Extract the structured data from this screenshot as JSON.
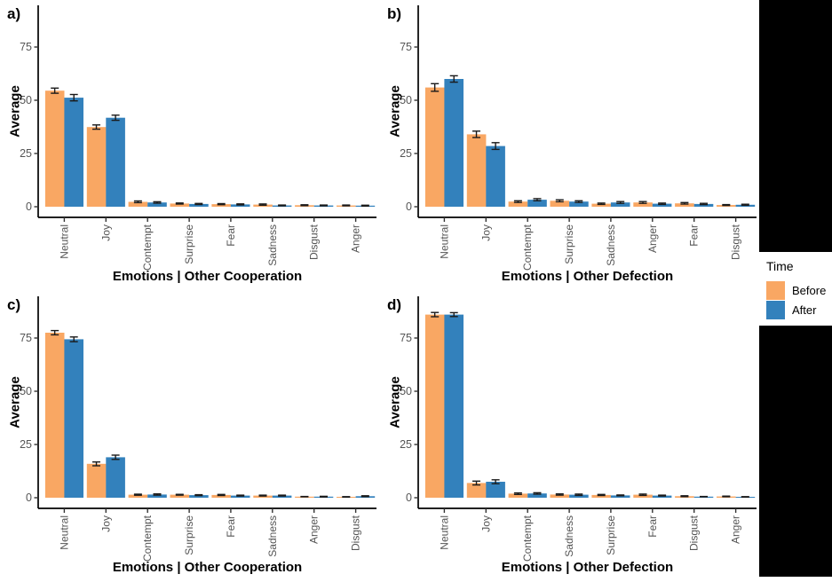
{
  "legend": {
    "title": "Time",
    "items": [
      {
        "label": "Before",
        "color": "#F9A763"
      },
      {
        "label": "After",
        "color": "#3381BC"
      }
    ]
  },
  "colors": {
    "before": "#F9A763",
    "after": "#3381BC",
    "axis_line": "#000000",
    "tick_text": "#555555",
    "error_bar": "#1A1A1A",
    "mask": "#000000"
  },
  "chart_data": [
    {
      "type": "bar",
      "panel_label": "a)",
      "xlabel": "Emotions | Other Cooperation",
      "ylabel": "Average",
      "yticks": [
        0,
        25,
        50,
        75
      ],
      "ylim": [
        0,
        93
      ],
      "legend_position": "right-outside",
      "grid": false,
      "categories": [
        "Neutral",
        "Joy",
        "Contempt",
        "Surprise",
        "Fear",
        "Sadness",
        "Disgust",
        "Anger"
      ],
      "series": [
        {
          "name": "Before",
          "values": [
            54.5,
            37.4,
            2.3,
            1.5,
            1.2,
            1.0,
            0.7,
            0.6
          ],
          "errors": [
            1.2,
            1.0,
            0.4,
            0.25,
            0.25,
            0.3,
            0.2,
            0.2
          ]
        },
        {
          "name": "After",
          "values": [
            51.2,
            41.8,
            2.0,
            1.3,
            1.1,
            0.6,
            0.6,
            0.5
          ],
          "errors": [
            1.5,
            1.2,
            0.35,
            0.25,
            0.25,
            0.2,
            0.2,
            0.2
          ]
        }
      ]
    },
    {
      "type": "bar",
      "panel_label": "b)",
      "xlabel": "Emotions | Other Defection",
      "ylabel": "Average",
      "yticks": [
        0,
        25,
        50,
        75
      ],
      "ylim": [
        0,
        93
      ],
      "legend_position": "right-outside",
      "grid": false,
      "categories": [
        "Neutral",
        "Joy",
        "Contempt",
        "Surprise",
        "Sadness",
        "Anger",
        "Fear",
        "Disgust"
      ],
      "series": [
        {
          "name": "Before",
          "values": [
            56.0,
            34.0,
            2.4,
            2.8,
            1.4,
            2.0,
            1.6,
            0.8
          ],
          "errors": [
            1.8,
            1.5,
            0.4,
            0.45,
            0.3,
            0.4,
            0.35,
            0.2
          ]
        },
        {
          "name": "After",
          "values": [
            60.0,
            28.5,
            3.3,
            2.4,
            2.0,
            1.4,
            1.3,
            0.9
          ],
          "errors": [
            1.5,
            1.6,
            0.5,
            0.4,
            0.4,
            0.3,
            0.3,
            0.25
          ]
        }
      ]
    },
    {
      "type": "bar",
      "panel_label": "c)",
      "xlabel": "Emotions | Other Cooperation",
      "ylabel": "Average",
      "yticks": [
        0,
        25,
        50,
        75
      ],
      "ylim": [
        0,
        93
      ],
      "legend_position": "right-outside",
      "grid": false,
      "categories": [
        "Neutral",
        "Joy",
        "Contempt",
        "Surprise",
        "Fear",
        "Sadness",
        "Anger",
        "Disgust"
      ],
      "series": [
        {
          "name": "Before",
          "values": [
            77.5,
            15.9,
            1.4,
            1.4,
            1.3,
            1.0,
            0.5,
            0.4
          ],
          "errors": [
            1.0,
            0.9,
            0.25,
            0.2,
            0.25,
            0.2,
            0.1,
            0.1
          ]
        },
        {
          "name": "After",
          "values": [
            74.4,
            19.0,
            1.5,
            1.2,
            1.0,
            1.0,
            0.5,
            0.7
          ],
          "errors": [
            1.1,
            1.0,
            0.3,
            0.2,
            0.2,
            0.2,
            0.15,
            0.2
          ]
        }
      ]
    },
    {
      "type": "bar",
      "panel_label": "d)",
      "xlabel": "Emotions | Other Defection",
      "ylabel": "Average",
      "yticks": [
        0,
        25,
        50,
        75
      ],
      "ylim": [
        0,
        93
      ],
      "legend_position": "right-outside",
      "grid": false,
      "categories": [
        "Neutral",
        "Joy",
        "Contempt",
        "Sadness",
        "Surprise",
        "Fear",
        "Disgust",
        "Anger"
      ],
      "series": [
        {
          "name": "Before",
          "values": [
            86.0,
            6.9,
            1.9,
            1.5,
            1.3,
            1.4,
            0.7,
            0.6
          ],
          "errors": [
            1.0,
            0.9,
            0.35,
            0.3,
            0.25,
            0.3,
            0.2,
            0.15
          ]
        },
        {
          "name": "After",
          "values": [
            86.0,
            7.5,
            2.0,
            1.4,
            1.1,
            1.0,
            0.5,
            0.4
          ],
          "errors": [
            0.9,
            0.9,
            0.35,
            0.3,
            0.2,
            0.2,
            0.1,
            0.1
          ]
        }
      ]
    }
  ]
}
